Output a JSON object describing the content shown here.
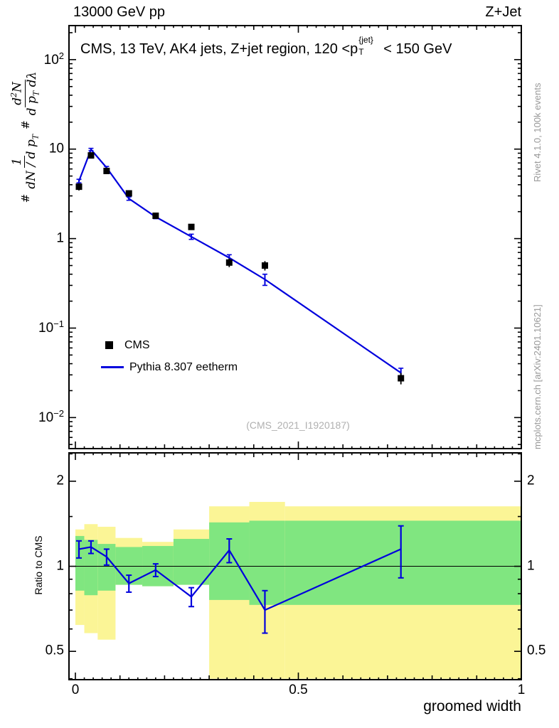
{
  "header": {
    "left": "13000 GeV pp",
    "right": "Z+Jet"
  },
  "titles": {
    "main_pre": "CMS, 13 TeV, AK4 jets, Z+jet region, 120 <p",
    "main_sup": "{jet}",
    "main_sub": "T",
    "main_post": "< 150 GeV",
    "watermark": "(CMS_2021_I1920187)",
    "x_title": "groomed width",
    "ratio_ylabel": "Ratio to CMS",
    "side_top": "Rivet 4.1.0,  100k events",
    "side_bottom": "mcplots.cern.ch [arXiv:2401.10621]",
    "ylabel": {
      "hash1": "#",
      "frac1_num": "1",
      "frac1_den_pre": "dN / d p",
      "frac1_den_sub": "T",
      "hash2": "#",
      "frac2_num_pre": "d",
      "frac2_num_sup": "2",
      "frac2_num_post": "N",
      "frac2_den_pre": "d p",
      "frac2_den_sub": "T",
      "frac2_den_post": " dλ"
    }
  },
  "legend": [
    {
      "marker": "square",
      "label": "CMS"
    },
    {
      "marker": "line",
      "label": "Pythia 8.307 eetherm"
    }
  ],
  "colors": {
    "data": "#000000",
    "mc": "#0000dd",
    "band_outer": "#fbf596",
    "band_inner": "#80e680",
    "watermark": "#b0b0b0",
    "side_text": "#999999"
  },
  "axes": {
    "x_ticks": [
      {
        "v": 0,
        "label": "0"
      },
      {
        "v": 0.5,
        "label": "0.5"
      },
      {
        "v": 1,
        "label": "1"
      }
    ],
    "main_y_ticks": [
      {
        "v": 100,
        "base": "10",
        "exp": "2"
      },
      {
        "v": 10,
        "base": "10",
        "exp": ""
      },
      {
        "v": 1,
        "base": "1",
        "exp": ""
      },
      {
        "v": 0.1,
        "base": "10",
        "exp": "−1"
      },
      {
        "v": 0.01,
        "base": "10",
        "exp": "−2"
      }
    ],
    "ratio_y_ticks": [
      {
        "v": 2,
        "label": "2"
      },
      {
        "v": 1,
        "label": "1"
      },
      {
        "v": 0.5,
        "label": "0.5"
      }
    ],
    "ratio_y_minor": [
      0.4,
      0.6,
      0.7,
      0.8,
      0.9,
      1.5,
      2.5
    ]
  },
  "chart_data": {
    "type": "line",
    "title": "CMS, 13 TeV, AK4 jets, Z+jet region, 120 < pT^{jet} < 150 GeV",
    "xlabel": "groomed width",
    "ylabel": "1/(dN/dpT) d2N/(dpT dλ)",
    "xlim": [
      0,
      1
    ],
    "ylim_log": [
      0.0045,
      240
    ],
    "x": [
      0.008,
      0.035,
      0.07,
      0.12,
      0.18,
      0.26,
      0.345,
      0.425,
      0.73
    ],
    "series": [
      {
        "name": "CMS",
        "type": "scatter",
        "marker": "square",
        "color": "#000000",
        "y": [
          3.8,
          8.5,
          5.7,
          3.2,
          1.8,
          1.35,
          0.54,
          0.5,
          0.0275
        ],
        "yerr": [
          0.35,
          0.5,
          0.35,
          0.2,
          0.12,
          0.1,
          0.06,
          0.06,
          0.004
        ]
      },
      {
        "name": "Pythia 8.307 eetherm",
        "type": "line",
        "color": "#0000dd",
        "y": [
          4.4,
          9.9,
          6.2,
          2.8,
          1.75,
          1.05,
          0.61,
          0.35,
          0.0316
        ],
        "yerr": [
          0.2,
          0.3,
          0.2,
          0.12,
          0.08,
          0.07,
          0.05,
          0.05,
          0.004
        ]
      }
    ],
    "ratio": {
      "ylabel": "Ratio to CMS",
      "ylim_log": [
        0.397,
        2.52
      ],
      "y": [
        1.15,
        1.17,
        1.08,
        0.87,
        0.97,
        0.78,
        1.14,
        0.7,
        1.15
      ],
      "yerr": [
        0.08,
        0.06,
        0.07,
        0.06,
        0.05,
        0.06,
        0.11,
        0.12,
        0.24
      ],
      "bin_edges": [
        0,
        0.02,
        0.05,
        0.09,
        0.15,
        0.22,
        0.3,
        0.39,
        0.47,
        1.0
      ],
      "band_outer": [
        [
          0.62,
          1.35
        ],
        [
          0.58,
          1.41
        ],
        [
          0.55,
          1.38
        ],
        [
          0.86,
          1.26
        ],
        [
          0.85,
          1.22
        ],
        [
          0.86,
          1.35
        ],
        [
          0.4,
          1.63
        ],
        [
          0.4,
          1.69
        ],
        [
          0.4,
          1.63
        ]
      ],
      "band_inner": [
        [
          0.82,
          1.28
        ],
        [
          0.79,
          1.24
        ],
        [
          0.82,
          1.2
        ],
        [
          0.86,
          1.17
        ],
        [
          0.85,
          1.18
        ],
        [
          0.86,
          1.25
        ],
        [
          0.76,
          1.43
        ],
        [
          0.73,
          1.45
        ],
        [
          0.73,
          1.45
        ]
      ]
    }
  }
}
